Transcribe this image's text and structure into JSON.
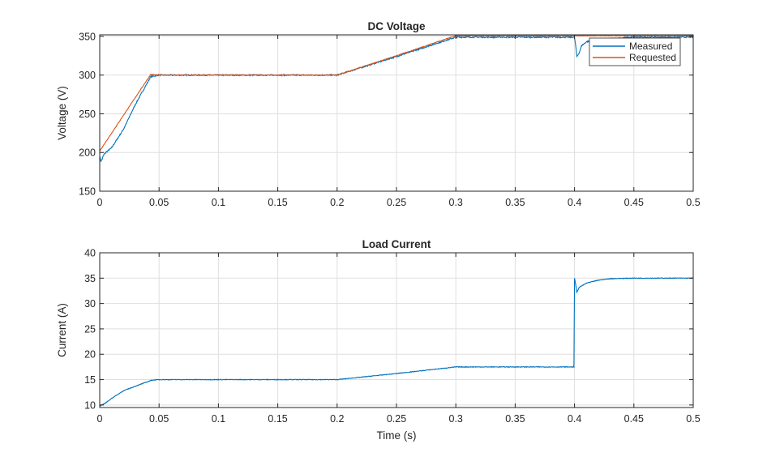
{
  "chart_data": [
    {
      "type": "line",
      "title": "DC Voltage",
      "xlabel": "",
      "ylabel": "Voltage (V)",
      "xlim": [
        0,
        0.5
      ],
      "ylim": [
        150,
        352
      ],
      "xticks": [
        0,
        0.05,
        0.1,
        0.15,
        0.2,
        0.25,
        0.3,
        0.35,
        0.4,
        0.45,
        0.5
      ],
      "xtick_labels": [
        "0",
        "0.05",
        "0.1",
        "0.15",
        "0.2",
        "0.25",
        "0.3",
        "0.35",
        "0.4",
        "0.45",
        "0.5"
      ],
      "yticks": [
        150,
        200,
        250,
        300,
        350
      ],
      "ytick_labels": [
        "150",
        "200",
        "250",
        "300",
        "350"
      ],
      "grid": true,
      "legend": {
        "placement": "top-right"
      },
      "series": [
        {
          "name": "Measured",
          "color": "#0072BD",
          "x": [
            0,
            0.001,
            0.002,
            0.003,
            0.005,
            0.01,
            0.02,
            0.03,
            0.043,
            0.05,
            0.1,
            0.15,
            0.2,
            0.25,
            0.3,
            0.35,
            0.399,
            0.4,
            0.401,
            0.402,
            0.404,
            0.406,
            0.41,
            0.42,
            0.45,
            0.5
          ],
          "y": [
            195,
            189,
            191,
            196,
            200,
            206,
            230,
            262,
            298,
            300,
            300,
            300,
            300,
            324,
            349,
            349,
            349,
            348,
            338,
            324,
            329,
            338,
            343,
            346,
            349,
            349
          ]
        },
        {
          "name": "Requested",
          "color": "#D95319",
          "x": [
            0,
            0.043,
            0.05,
            0.1,
            0.15,
            0.2,
            0.25,
            0.3,
            0.35,
            0.4,
            0.45,
            0.5
          ],
          "y": [
            202,
            301,
            300,
            300,
            300,
            300,
            325,
            351,
            351,
            351,
            351,
            351
          ]
        }
      ]
    },
    {
      "type": "line",
      "title": "Load Current",
      "xlabel": "Time (s)",
      "ylabel": "Current (A)",
      "xlim": [
        0,
        0.5
      ],
      "ylim": [
        9.5,
        40
      ],
      "xticks": [
        0,
        0.05,
        0.1,
        0.15,
        0.2,
        0.25,
        0.3,
        0.35,
        0.4,
        0.45,
        0.5
      ],
      "xtick_labels": [
        "0",
        "0.05",
        "0.1",
        "0.15",
        "0.2",
        "0.25",
        "0.3",
        "0.35",
        "0.4",
        "0.45",
        "0.5"
      ],
      "yticks": [
        10,
        15,
        20,
        25,
        30,
        35,
        40
      ],
      "ytick_labels": [
        "10",
        "15",
        "20",
        "25",
        "30",
        "35",
        "40"
      ],
      "grid": true,
      "series": [
        {
          "name": "",
          "color": "#0072BD",
          "x": [
            0,
            0.005,
            0.01,
            0.02,
            0.03,
            0.044,
            0.05,
            0.1,
            0.15,
            0.2,
            0.25,
            0.3,
            0.35,
            0.399,
            0.3995,
            0.4,
            0.401,
            0.402,
            0.404,
            0.41,
            0.42,
            0.43,
            0.45,
            0.5
          ],
          "y": [
            9.8,
            10.4,
            11.3,
            12.8,
            13.7,
            14.9,
            15,
            15,
            15,
            15,
            16.2,
            17.5,
            17.5,
            17.5,
            17.5,
            35,
            33.8,
            32.2,
            33.2,
            34.0,
            34.6,
            34.9,
            35,
            35
          ]
        }
      ]
    }
  ]
}
